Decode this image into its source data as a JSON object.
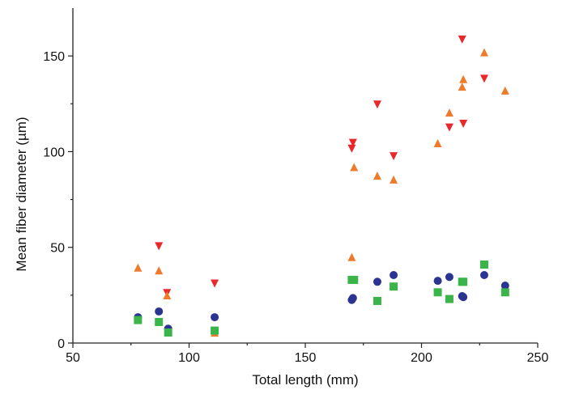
{
  "chart_data": {
    "type": "scatter",
    "title": "",
    "xlabel": "Total length (mm)",
    "ylabel": "Mean fiber diameter (µm)",
    "xlim": [
      50,
      250
    ],
    "ylim": [
      0,
      175
    ],
    "x_ticks": [
      "50",
      "100",
      "150",
      "200",
      "250"
    ],
    "y_ticks": [
      "0",
      "50",
      "100",
      "150"
    ],
    "grid": false,
    "legend": "none",
    "series": [
      {
        "marker": "triangle-down",
        "color": "#e8282a",
        "points": [
          [
            87,
            51
          ],
          [
            90.5,
            26.5
          ],
          [
            111,
            31.5
          ],
          [
            170,
            102
          ],
          [
            170.5,
            105
          ],
          [
            181,
            125
          ],
          [
            188,
            98
          ],
          [
            212,
            113
          ],
          [
            217.5,
            159
          ],
          [
            218,
            115
          ],
          [
            227,
            138.5
          ]
        ]
      },
      {
        "marker": "triangle-up",
        "color": "#ee7a2c",
        "points": [
          [
            78,
            39
          ],
          [
            87,
            37.5
          ],
          [
            90.5,
            24.5
          ],
          [
            111,
            5
          ],
          [
            170,
            44.5
          ],
          [
            171,
            91.5
          ],
          [
            181,
            87
          ],
          [
            188,
            85
          ],
          [
            207,
            104
          ],
          [
            212,
            120
          ],
          [
            217.5,
            133.5
          ],
          [
            218,
            137.5
          ],
          [
            227,
            151.5
          ],
          [
            236,
            131.5
          ]
        ]
      },
      {
        "marker": "circle",
        "color": "#2b3591",
        "points": [
          [
            78,
            13.5
          ],
          [
            87,
            16.5
          ],
          [
            91,
            7.5
          ],
          [
            111,
            13.5
          ],
          [
            170,
            22.5
          ],
          [
            170.5,
            23.5
          ],
          [
            181,
            32
          ],
          [
            188,
            35.5
          ],
          [
            207,
            32.5
          ],
          [
            212,
            34.5
          ],
          [
            217.5,
            24.5
          ],
          [
            218,
            24
          ],
          [
            227,
            35.5
          ],
          [
            236,
            30
          ]
        ]
      },
      {
        "marker": "square",
        "color": "#3bb54a",
        "points": [
          [
            78,
            12
          ],
          [
            87,
            11
          ],
          [
            91,
            5.5
          ],
          [
            111,
            6.5
          ],
          [
            170,
            33
          ],
          [
            171,
            33
          ],
          [
            181,
            22
          ],
          [
            188,
            29.5
          ],
          [
            207,
            26.5
          ],
          [
            212,
            23
          ],
          [
            217.5,
            32
          ],
          [
            218,
            32
          ],
          [
            227,
            41
          ],
          [
            236,
            26.5
          ]
        ]
      }
    ]
  }
}
